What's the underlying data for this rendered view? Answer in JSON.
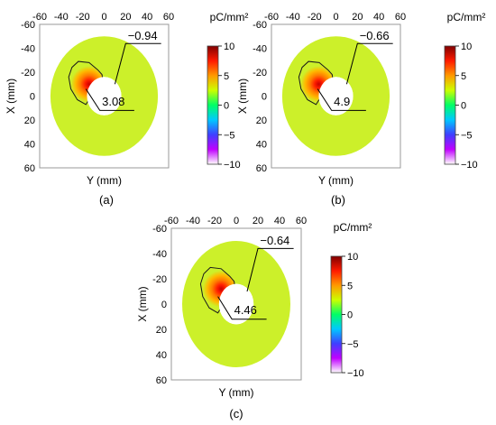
{
  "chart_data": [
    {
      "type": "heatmap",
      "caption": "(a)",
      "xlabel": "Y (mm)",
      "ylabel": "X (mm)",
      "xlim": [
        -60,
        60
      ],
      "ylim": [
        -60,
        60
      ],
      "x_ticks": [
        -60,
        -40,
        -20,
        0,
        20,
        40,
        60
      ],
      "y_ticks": [
        -60,
        -40,
        -20,
        0,
        20,
        40,
        60
      ],
      "y_axis_inverted": true,
      "annulus_outer_radius": 50,
      "annulus_inner_radius": 16,
      "hotspot_center": [
        -14,
        -10
      ],
      "annotations": [
        {
          "text": "−0.94",
          "target": "contour line"
        },
        {
          "text": "3.08",
          "target": "peak"
        }
      ],
      "colorbar": {
        "unit": "pC/mm²",
        "min": -10,
        "max": 10,
        "ticks": [
          10,
          5,
          0,
          -5,
          -10
        ]
      }
    },
    {
      "type": "heatmap",
      "caption": "(b)",
      "xlabel": "Y (mm)",
      "ylabel": "X (mm)",
      "xlim": [
        -60,
        60
      ],
      "ylim": [
        -60,
        60
      ],
      "x_ticks": [
        -60,
        -40,
        -20,
        0,
        20,
        40,
        60
      ],
      "y_ticks": [
        -60,
        -40,
        -20,
        0,
        20,
        40,
        60
      ],
      "y_axis_inverted": true,
      "annulus_outer_radius": 50,
      "annulus_inner_radius": 16,
      "hotspot_center": [
        -16,
        -10
      ],
      "annotations": [
        {
          "text": "−0.66",
          "target": "contour line"
        },
        {
          "text": "4.9",
          "target": "peak"
        }
      ],
      "colorbar": {
        "unit": "pC/mm²",
        "min": -10,
        "max": 10,
        "ticks": [
          10,
          5,
          0,
          -5,
          -10
        ]
      }
    },
    {
      "type": "heatmap",
      "caption": "(c)",
      "xlabel": "Y (mm)",
      "ylabel": "X (mm)",
      "xlim": [
        -60,
        60
      ],
      "ylim": [
        -60,
        60
      ],
      "x_ticks": [
        -60,
        -40,
        -20,
        0,
        20,
        40,
        60
      ],
      "y_ticks": [
        -60,
        -40,
        -20,
        0,
        20,
        40,
        60
      ],
      "y_axis_inverted": true,
      "annulus_outer_radius": 50,
      "annulus_inner_radius": 16,
      "hotspot_center": [
        -14,
        -12
      ],
      "annotations": [
        {
          "text": "−0.64",
          "target": "contour line"
        },
        {
          "text": "4.46",
          "target": "peak"
        }
      ],
      "colorbar": {
        "unit": "pC/mm²",
        "min": -10,
        "max": 10,
        "ticks": [
          10,
          5,
          0,
          -5,
          -10
        ]
      }
    }
  ],
  "colorscale": [
    "#ffffff",
    "#c000ff",
    "#3f3fff",
    "#00c8ff",
    "#00ff66",
    "#ccff00",
    "#ff9900",
    "#ff1a00",
    "#800000"
  ],
  "colors": {
    "field": "#ccf02a",
    "frame": "#999999",
    "contour": "#1a1a1a"
  }
}
